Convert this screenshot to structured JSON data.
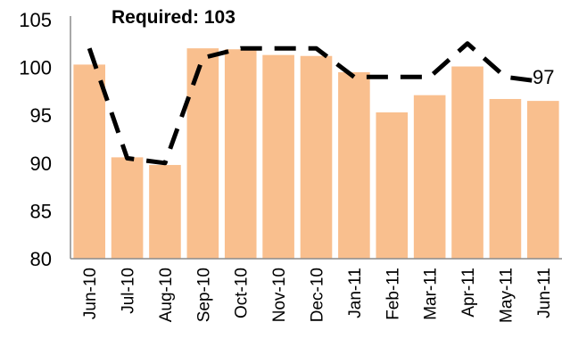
{
  "chart_data": {
    "type": "bar",
    "categories": [
      "Jun-10",
      "Jul-10",
      "Aug-10",
      "Sep-10",
      "Oct-10",
      "Nov-10",
      "Dec-10",
      "Jan-11",
      "Feb-11",
      "Mar-11",
      "Apr-11",
      "May-11",
      "Jun-11"
    ],
    "series": [
      {
        "type": "bar",
        "values": [
          100.3,
          90.6,
          89.8,
          102.0,
          101.9,
          101.3,
          101.2,
          99.5,
          95.3,
          97.1,
          100.1,
          96.7,
          96.5
        ]
      },
      {
        "type": "line",
        "style": "dashed",
        "values": [
          102.0,
          90.5,
          90.0,
          101.0,
          102.0,
          102.0,
          102.0,
          99.0,
          99.0,
          99.0,
          102.5,
          99.0,
          98.5
        ]
      }
    ],
    "ylim": [
      80,
      105
    ],
    "yticks": [
      80,
      85,
      90,
      95,
      100,
      105
    ],
    "grid": false,
    "annotation": "Required: 103",
    "end_label": "97",
    "colors": {
      "bar": "#F9BF8E",
      "line": "#000000",
      "axis": "#8c8c8c"
    }
  }
}
